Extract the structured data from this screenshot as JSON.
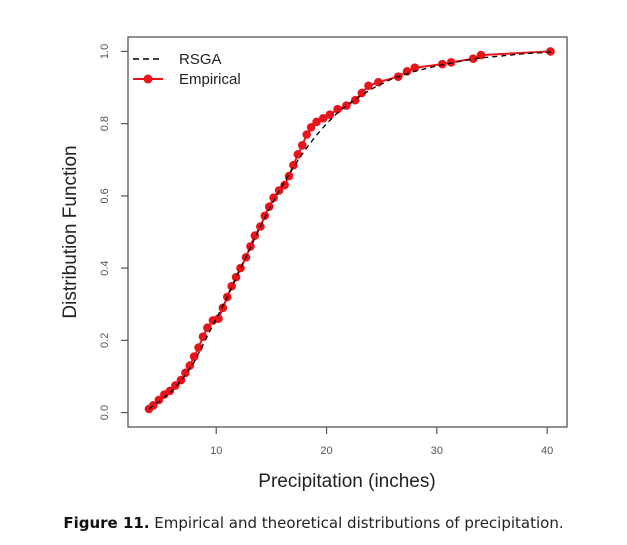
{
  "chart_data": {
    "type": "line",
    "xlabel": "Precipitation (inches)",
    "ylabel": "Distribution Function",
    "xlim": [
      2.0,
      41.8
    ],
    "ylim": [
      -0.04,
      1.04
    ],
    "x_ticks": [
      10,
      20,
      30,
      40
    ],
    "x_tick_labels": [
      "10",
      "20",
      "30",
      "40"
    ],
    "y_ticks": [
      0.0,
      0.2,
      0.4,
      0.6,
      0.8,
      1.0
    ],
    "y_tick_labels": [
      "0.0",
      "0.2",
      "0.4",
      "0.6",
      "0.8",
      "1.0"
    ],
    "grid": false,
    "legend_position": "top-left",
    "legend": [
      {
        "label": "RSGA",
        "style": "dashed",
        "color": "#000000"
      },
      {
        "label": "Empirical",
        "style": "line-points",
        "color": "#e8141b"
      }
    ],
    "series": [
      {
        "name": "Empirical",
        "color": "#e8141b",
        "x": [
          3.9,
          4.3,
          4.8,
          5.3,
          5.8,
          6.3,
          6.8,
          7.2,
          7.6,
          8.0,
          8.4,
          8.8,
          9.2,
          9.7,
          10.2,
          10.6,
          11.0,
          11.4,
          11.8,
          12.2,
          12.7,
          13.1,
          13.5,
          14.0,
          14.4,
          14.8,
          15.2,
          15.7,
          16.2,
          16.6,
          17.0,
          17.4,
          17.8,
          18.2,
          18.6,
          19.1,
          19.7,
          20.3,
          21.0,
          21.8,
          22.6,
          23.2,
          23.8,
          24.7,
          26.5,
          27.3,
          28.0,
          30.5,
          31.3,
          33.3,
          34.0,
          40.3
        ],
        "y": [
          0.01,
          0.02,
          0.035,
          0.05,
          0.06,
          0.075,
          0.09,
          0.11,
          0.13,
          0.155,
          0.18,
          0.21,
          0.235,
          0.255,
          0.26,
          0.29,
          0.32,
          0.35,
          0.375,
          0.4,
          0.43,
          0.46,
          0.49,
          0.515,
          0.545,
          0.57,
          0.595,
          0.615,
          0.63,
          0.655,
          0.685,
          0.715,
          0.74,
          0.77,
          0.79,
          0.805,
          0.815,
          0.825,
          0.84,
          0.85,
          0.865,
          0.885,
          0.905,
          0.915,
          0.93,
          0.945,
          0.955,
          0.965,
          0.97,
          0.98,
          0.99,
          1.0
        ]
      },
      {
        "name": "RSGA",
        "color": "#000000",
        "x": [
          3.9,
          5.0,
          6.0,
          7.0,
          8.0,
          9.0,
          10.0,
          11.0,
          12.0,
          13.0,
          14.0,
          15.0,
          16.0,
          17.0,
          18.0,
          19.0,
          20.0,
          21.0,
          22.0,
          23.0,
          24.0,
          25.0,
          26.0,
          28.0,
          30.0,
          32.0,
          34.0,
          36.0,
          38.0,
          40.3
        ],
        "y": [
          0.01,
          0.035,
          0.06,
          0.095,
          0.14,
          0.2,
          0.26,
          0.32,
          0.385,
          0.45,
          0.515,
          0.575,
          0.63,
          0.68,
          0.725,
          0.765,
          0.8,
          0.83,
          0.855,
          0.875,
          0.895,
          0.91,
          0.925,
          0.945,
          0.96,
          0.972,
          0.982,
          0.988,
          0.994,
          0.998
        ]
      }
    ]
  },
  "caption": {
    "label": "Figure 11.",
    "text": " Empirical and theoretical distributions of precipitation."
  }
}
